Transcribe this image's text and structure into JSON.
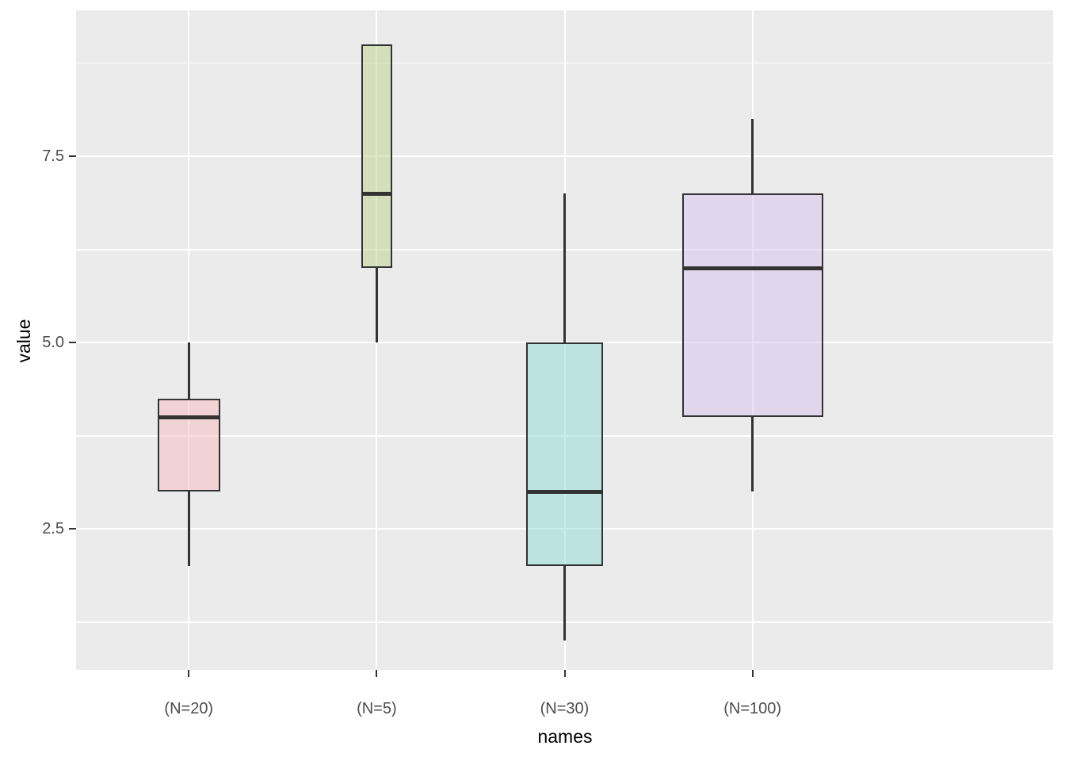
{
  "figure": {
    "background": "#ffffff",
    "panel_background": "#ebebeb",
    "gridline_color": "#ffffff",
    "tick_color": "#333333",
    "tick_label_color": "#4d4d4d",
    "axis_title_color": "#000000",
    "box_border_color": "#333333",
    "fill_alpha": 0.45
  },
  "chart_data": {
    "type": "boxplot",
    "title": "",
    "xlabel": "names",
    "ylabel": "value",
    "legend_position": "none",
    "grid": "on",
    "varwidth": true,
    "categories": [
      "(N=20)",
      "(N=5)",
      "(N=30)",
      "(N=100)"
    ],
    "boxes": [
      {
        "category": "(N=20)",
        "n": 20,
        "whisker_low": 2.0,
        "q1": 3.0,
        "median": 4.0,
        "q3": 4.25,
        "whisker_high": 5.0,
        "fill": "#f8b6ba",
        "fill_composited": "#f1d3d5"
      },
      {
        "category": "(N=5)",
        "n": 5,
        "whisker_low": 5.0,
        "q1": 6.0,
        "median": 7.0,
        "q3": 9.0,
        "whisker_high": 9.0,
        "fill": "#bace7e",
        "fill_composited": "#d5deba"
      },
      {
        "category": "(N=30)",
        "n": 30,
        "whisker_low": 1.0,
        "q1": 2.0,
        "median": 3.0,
        "q3": 5.0,
        "whisker_high": 7.0,
        "fill": "#85d9d5",
        "fill_composited": "#bde3e1"
      },
      {
        "category": "(N=100)",
        "n": 100,
        "whisker_low": 3.0,
        "q1": 4.0,
        "median": 6.0,
        "q3": 7.0,
        "whisker_high": 8.0,
        "fill": "#d5bcef",
        "fill_composited": "#e1d6ed"
      }
    ],
    "y_axis": {
      "ticks": [
        2.5,
        5.0,
        7.5
      ],
      "tick_labels": [
        "2.5",
        "5.0",
        "7.5"
      ],
      "minor_gridlines": [
        1.25,
        3.75,
        6.25,
        8.75
      ],
      "domain": [
        0.61,
        9.46
      ]
    }
  }
}
